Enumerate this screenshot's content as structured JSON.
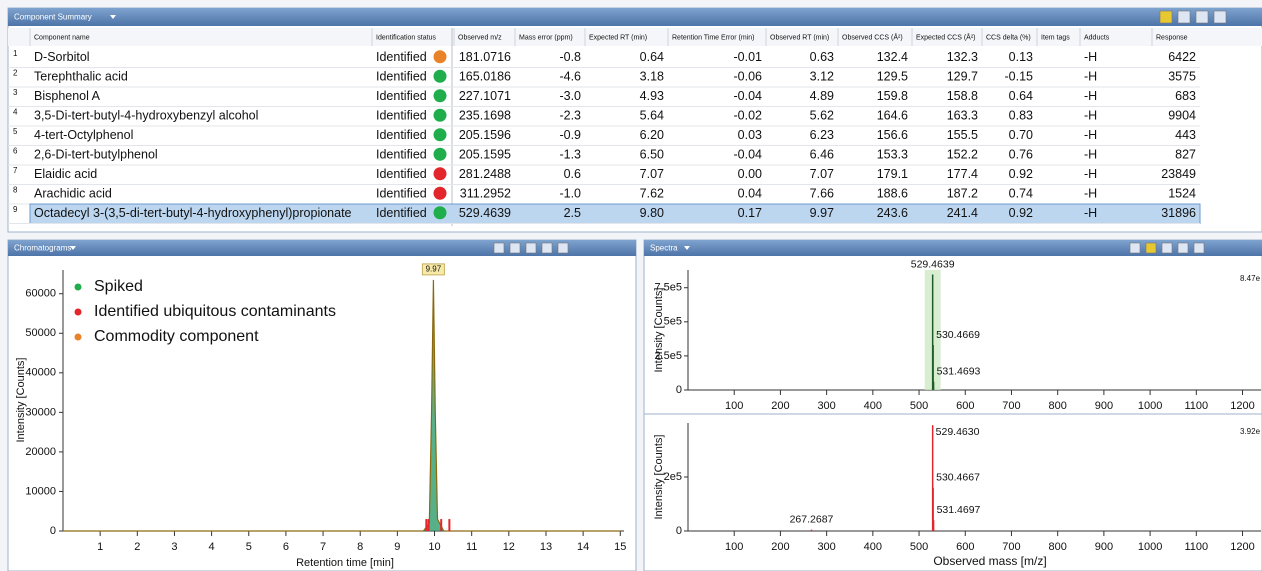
{
  "table": {
    "title": "Component Summary",
    "columns": [
      "Component name",
      "Identification status",
      "Observed m/z",
      "Mass error (ppm)",
      "Expected RT (min)",
      "Retention Time Error (min)",
      "Observed RT (min)",
      "Observed CCS (Å²)",
      "Expected CCS (Å²)",
      "CCS delta (%)",
      "Item tags",
      "Adducts",
      "Response"
    ],
    "rows": [
      [
        "1",
        "D-Sorbitol",
        "Identified",
        "181.0716",
        "-0.8",
        "0.64",
        "-0.01",
        "0.63",
        "132.4",
        "132.3",
        "0.13",
        "-H",
        "6422"
      ],
      [
        "2",
        "Terephthalic acid",
        "Identified",
        "165.0186",
        "-4.6",
        "3.18",
        "-0.06",
        "3.12",
        "129.5",
        "129.7",
        "-0.15",
        "-H",
        "3575"
      ],
      [
        "3",
        "Bisphenol A",
        "Identified",
        "227.1071",
        "-3.0",
        "4.93",
        "-0.04",
        "4.89",
        "159.8",
        "158.8",
        "0.64",
        "-H",
        "683"
      ],
      [
        "4",
        "3,5-Di-tert-butyl-4-hydroxybenzyl alcohol",
        "Identified",
        "235.1698",
        "-2.3",
        "5.64",
        "-0.02",
        "5.62",
        "164.6",
        "163.3",
        "0.83",
        "-H",
        "9904"
      ],
      [
        "5",
        "4-tert-Octylphenol",
        "Identified",
        "205.1596",
        "-0.9",
        "6.20",
        "0.03",
        "6.23",
        "156.6",
        "155.5",
        "0.70",
        "-H",
        "443"
      ],
      [
        "6",
        "2,6-Di-tert-butylphenol",
        "Identified",
        "205.1595",
        "-1.3",
        "6.50",
        "-0.04",
        "6.46",
        "153.3",
        "152.2",
        "0.76",
        "-H",
        "827"
      ],
      [
        "7",
        "Elaidic acid",
        "Identified",
        "281.2488",
        "0.6",
        "7.07",
        "0.00",
        "7.07",
        "179.1",
        "177.4",
        "0.92",
        "-H",
        "23849"
      ],
      [
        "8",
        "Arachidic acid",
        "Identified",
        "311.2952",
        "-1.0",
        "7.62",
        "0.04",
        "7.66",
        "188.6",
        "187.2",
        "0.74",
        "-H",
        "1524"
      ],
      [
        "9",
        "Octadecyl 3-(3,5-di-tert-butyl-4-hydroxyphenyl)propionate",
        "Identified",
        "529.4639",
        "2.5",
        "9.80",
        "0.17",
        "9.97",
        "243.6",
        "241.4",
        "0.92",
        "-H",
        "31896"
      ]
    ],
    "status_colors": [
      "#e8832a",
      "#1fae4b",
      "#1fae4b",
      "#1fae4b",
      "#1fae4b",
      "#1fae4b",
      "#e2262b",
      "#e2262b",
      "#1fae4b"
    ],
    "selected_row": 8
  },
  "chromatograms": {
    "title": "Chromatograms",
    "type": "line",
    "legend": [
      {
        "name": "Spiked",
        "color": "#1fae4b"
      },
      {
        "name": "Identified  ubiquitous contaminants",
        "color": "#e2262b"
      },
      {
        "name": "Commodity component",
        "color": "#e8832a"
      }
    ],
    "trace": {
      "x": [
        0,
        9.7,
        9.86,
        9.92,
        9.97,
        10.02,
        10.08,
        10.25,
        15
      ],
      "y": [
        0,
        0,
        2000,
        30000,
        63500,
        30000,
        3000,
        0,
        0
      ],
      "color": "#2e9c6a"
    },
    "markers": {
      "x": [
        9.78,
        9.84,
        10.18,
        10.4
      ],
      "y": [
        1500,
        1500,
        1500,
        1500
      ],
      "color": "#e2262b"
    },
    "xlim": [
      0,
      15.1
    ],
    "xticks": [
      1,
      2,
      3,
      4,
      5,
      6,
      7,
      8,
      9,
      10,
      11,
      12,
      13,
      14,
      15
    ],
    "ylim": [
      0,
      66000
    ],
    "yticks": [
      0,
      10000,
      20000,
      30000,
      40000,
      50000,
      60000
    ],
    "xlabel": "Retention time [min]",
    "ylabel": "Intensity [Counts]"
  },
  "spectra": {
    "title": "Spectra",
    "type": "stick",
    "xlim": [
      0,
      1240
    ],
    "xticks": [
      100,
      200,
      300,
      400,
      500,
      600,
      700,
      800,
      900,
      1000,
      1100,
      1200
    ],
    "xlabel": "Observed mass [m/z]",
    "ylabel": "Intensity [Counts]",
    "plots": [
      {
        "color": "#1f5e2a",
        "max_label": "8.47e",
        "ylim": [
          0,
          880000
        ],
        "yticks": [
          0,
          {
            "value": 250000,
            "label": "2.5e5"
          },
          {
            "value": 500000,
            "label": "5e5"
          },
          {
            "value": 750000,
            "label": "7.5e5"
          }
        ],
        "mz": [
          529.4639,
          530.4669,
          531.4693
        ],
        "intensity": [
          847000,
          330000,
          60000
        ]
      },
      {
        "color": "#e2262b",
        "max_label": "3.92e",
        "ylim": [
          0,
          400000
        ],
        "yticks": [
          0,
          {
            "value": 200000,
            "label": "2e5"
          }
        ],
        "mz": [
          529.463,
          530.4667,
          531.4697,
          267.2687
        ],
        "mz_labels": [
          "529.4630",
          "530.4667",
          "531.4697",
          "267.2687"
        ],
        "intensity": [
          392000,
          160000,
          40000,
          5000
        ]
      }
    ]
  }
}
